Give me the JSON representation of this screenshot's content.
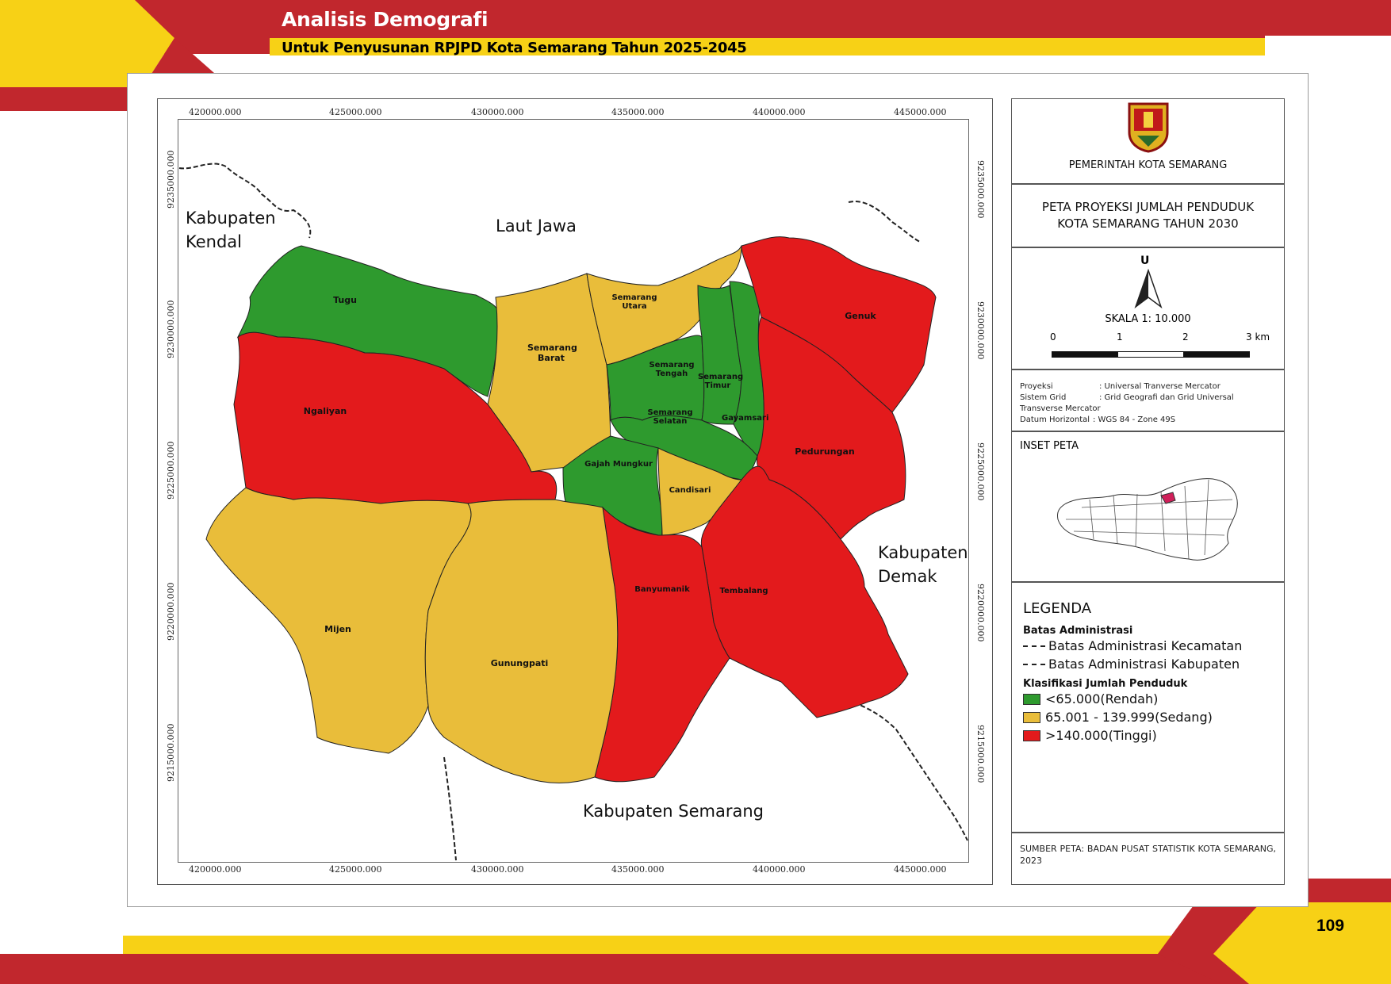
{
  "header": {
    "title": "Analisis Demografi",
    "subtitle": "Untuk Penyusunan RPJPD Kota Semarang Tahun 2025-2045"
  },
  "page_number": "109",
  "map": {
    "x_coords_top": [
      "420000.000",
      "425000.000",
      "430000.000",
      "435000.000",
      "440000.000",
      "445000.000"
    ],
    "x_coords_bottom": [
      "420000.000",
      "425000.000",
      "430000.000",
      "435000.000",
      "440000.000",
      "445000.000"
    ],
    "y_coords": [
      "9235000.000",
      "9230000.000",
      "9225000.000",
      "9220000.000",
      "9215000.000"
    ],
    "places": {
      "kendal": "Kabupaten\nKendal",
      "laut_jawa": "Laut Jawa",
      "demak": "Kabupaten\nDemak",
      "semarang": "Kabupaten Semarang"
    },
    "districts": [
      {
        "name": "Tugu",
        "class": "rendah"
      },
      {
        "name": "Semarang Barat",
        "class": "sedang"
      },
      {
        "name": "Semarang Utara",
        "class": "sedang"
      },
      {
        "name": "Semarang Tengah",
        "class": "rendah"
      },
      {
        "name": "Semarang Timur",
        "class": "rendah"
      },
      {
        "name": "Gayamsari",
        "class": "rendah"
      },
      {
        "name": "Genuk",
        "class": "tinggi"
      },
      {
        "name": "Ngaliyan",
        "class": "tinggi"
      },
      {
        "name": "Semarang Selatan",
        "class": "rendah"
      },
      {
        "name": "Gajah Mungkur",
        "class": "rendah"
      },
      {
        "name": "Candisari",
        "class": "sedang"
      },
      {
        "name": "Pedurungan",
        "class": "tinggi"
      },
      {
        "name": "Mijen",
        "class": "sedang"
      },
      {
        "name": "Gunungpati",
        "class": "sedang"
      },
      {
        "name": "Banyumanik",
        "class": "tinggi"
      },
      {
        "name": "Tembalang",
        "class": "tinggi"
      }
    ],
    "colors": {
      "rendah": "#2e9a2e",
      "sedang": "#e9bd3a",
      "tinggi": "#e31a1c"
    }
  },
  "panel": {
    "authority": "PEMERINTAH KOTA SEMARANG",
    "map_title": "PETA PROYEKSI JUMLAH PENDUDUK\nKOTA SEMARANG TAHUN 2030",
    "north": "U",
    "scale": "SKALA 1: 10.000",
    "scale_ticks": [
      "0",
      "1",
      "2",
      "3 km"
    ],
    "projection": [
      {
        "label": "Proyeksi",
        "value": ": Universal Tranverse Mercator"
      },
      {
        "label": "Sistem Grid",
        "value": ": Grid Geografi dan Grid Universal"
      },
      {
        "label": "",
        "value": "Transverse Mercator"
      },
      {
        "label": "Datum Horizontal",
        "value": ": WGS 84 - Zone 49S"
      }
    ],
    "inset_title": "INSET PETA",
    "legend_title": "LEGENDA",
    "batas_title": "Batas Administrasi",
    "batas_items": [
      "Batas Administrasi Kecamatan",
      "Batas Administrasi Kabupaten"
    ],
    "klasifikasi_title": "Klasifikasi Jumlah Penduduk",
    "klasifikasi_items": [
      {
        "label": "<65.000(Rendah)",
        "color": "#2e9a2e"
      },
      {
        "label": "65.001 - 139.999(Sedang)",
        "color": "#e9bd3a"
      },
      {
        "label": ">140.000(Tinggi)",
        "color": "#e31a1c"
      }
    ],
    "source": "SUMBER PETA: BADAN PUSAT STATISTIK KOTA SEMARANG, 2023"
  }
}
